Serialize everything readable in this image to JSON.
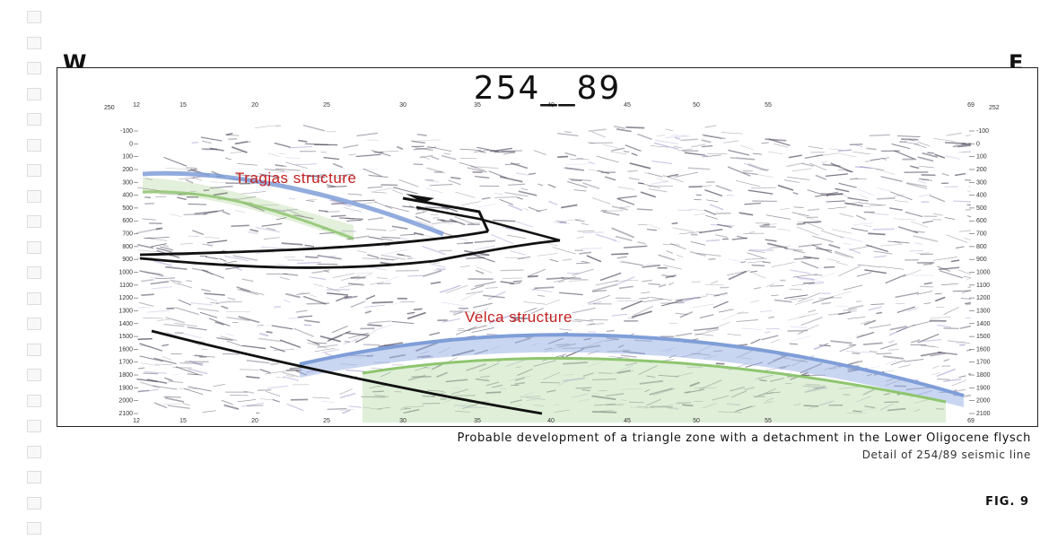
{
  "page": {
    "title": "254__89",
    "west_label": "W",
    "east_label": "E",
    "caption_main": "Probable development of a triangle zone with a detachment in the Lower Oligocene flysch",
    "caption_sub": "Detail of 254/89 seismic line",
    "figure_label": "FIG. 9"
  },
  "section": {
    "top_ticks": [
      "12",
      "15",
      "20",
      "25",
      "30",
      "35",
      "40",
      "45",
      "50",
      "55",
      "69"
    ],
    "bottom_ticks": [
      "12",
      "15",
      "20",
      "25",
      "30",
      "35",
      "40",
      "45",
      "50",
      "55",
      "69"
    ],
    "depth_ticks_left": [
      "-100",
      "0",
      "100",
      "200",
      "300",
      "400",
      "500",
      "600",
      "700",
      "800",
      "900",
      "1000",
      "1100",
      "1200",
      "1300",
      "1400",
      "1500",
      "1600",
      "1700",
      "1800",
      "1900",
      "2000",
      "2100"
    ],
    "depth_ticks_right": [
      "-100",
      "0",
      "100",
      "200",
      "300",
      "400",
      "500",
      "600",
      "700",
      "800",
      "900",
      "1000",
      "1100",
      "1200",
      "1300",
      "1400",
      "1500",
      "1600",
      "1700",
      "1800",
      "1900",
      "2000",
      "2100"
    ],
    "corner_left_top": "250",
    "corner_right_top": "252",
    "structure_labels": {
      "tragjas": "Tragjas structure",
      "velca": "Velca structure"
    },
    "colors": {
      "fault": "#111111",
      "blue_horizon": "#7f9ed8",
      "green_horizon": "#8ec56f",
      "label_red": "#c62020",
      "noise": "#4a4258"
    }
  }
}
